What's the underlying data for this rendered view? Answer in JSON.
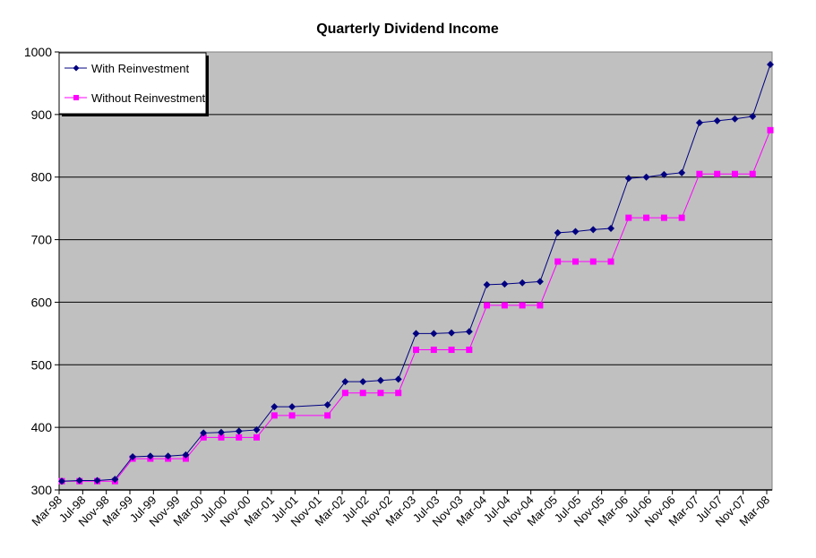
{
  "chart_data": {
    "type": "line",
    "title": "Quarterly Dividend Income",
    "xlabel": "",
    "ylabel": "",
    "ylim": [
      300,
      1000
    ],
    "yticks": [
      300,
      400,
      500,
      600,
      700,
      800,
      900,
      1000
    ],
    "grid": true,
    "legend_position": "top-left inside",
    "plot_background": "#c0c0c0",
    "x_tick_labels": [
      "Mar-98",
      "Jul-98",
      "Nov-98",
      "Mar-99",
      "Jul-99",
      "Nov-99",
      "Mar-00",
      "Jul-00",
      "Nov-00",
      "Mar-01",
      "Jul-01",
      "Nov-01",
      "Mar-02",
      "Jul-02",
      "Nov-02",
      "Mar-03",
      "Jul-03",
      "Nov-03",
      "Mar-04",
      "Jul-04",
      "Nov-04",
      "Mar-05",
      "Jul-05",
      "Nov-05",
      "Mar-06",
      "Jul-06",
      "Nov-06",
      "Mar-07",
      "Jul-07",
      "Nov-07",
      "Mar-08"
    ],
    "x": [
      "Mar-98",
      "Jun-98",
      "Sep-98",
      "Dec-98",
      "Mar-99",
      "Jun-99",
      "Sep-99",
      "Dec-99",
      "Mar-00",
      "Jun-00",
      "Sep-00",
      "Dec-00",
      "Mar-01",
      "Jun-01",
      "Sep-01",
      "Dec-01",
      "Mar-02",
      "Jun-02",
      "Sep-02",
      "Dec-02",
      "Mar-03",
      "Jun-03",
      "Sep-03",
      "Dec-03",
      "Mar-04",
      "Jun-04",
      "Sep-04",
      "Dec-04",
      "Mar-05",
      "Jun-05",
      "Sep-05",
      "Dec-05",
      "Mar-06",
      "Jun-06",
      "Sep-06",
      "Dec-06",
      "Mar-07",
      "Jun-07",
      "Sep-07",
      "Dec-07",
      "Mar-08"
    ],
    "series": [
      {
        "name": "With Reinvestment",
        "color": "#000080",
        "marker": "diamond",
        "values": [
          314,
          315,
          315,
          317,
          353,
          354,
          354,
          356,
          391,
          392,
          394,
          396,
          433,
          433,
          null,
          436,
          473,
          473,
          475,
          477,
          550,
          550,
          551,
          553,
          628,
          629,
          631,
          633,
          711,
          713,
          716,
          718,
          798,
          800,
          804,
          807,
          887,
          890,
          893,
          897,
          980
        ]
      },
      {
        "name": "Without Reinvestment",
        "color": "#ff00ff",
        "marker": "square",
        "values": [
          314,
          314,
          314,
          314,
          350,
          350,
          350,
          350,
          384,
          384,
          384,
          384,
          419,
          419,
          null,
          419,
          455,
          455,
          455,
          455,
          524,
          524,
          524,
          524,
          595,
          595,
          595,
          595,
          665,
          665,
          665,
          665,
          735,
          735,
          735,
          735,
          805,
          805,
          805,
          805,
          875
        ]
      }
    ]
  }
}
